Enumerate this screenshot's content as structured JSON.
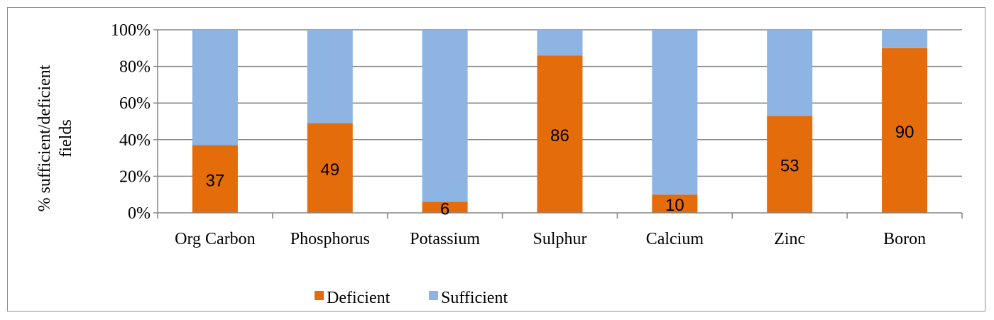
{
  "chart_data": {
    "type": "bar",
    "stacked": true,
    "percent_stacked": true,
    "categories": [
      "Org Carbon",
      "Phosphorus",
      "Potassium",
      "Sulphur",
      "Calcium",
      "Zinc",
      "Boron"
    ],
    "series": [
      {
        "name": "Deficient",
        "values": [
          37,
          49,
          6,
          86,
          10,
          53,
          90
        ],
        "color": "#e46c0a"
      },
      {
        "name": "Sufficient",
        "values": [
          63,
          51,
          94,
          14,
          90,
          47,
          10
        ],
        "color": "#8eb4e3"
      }
    ],
    "data_labels": [
      "37",
      "49",
      "6",
      "86",
      "10",
      "53",
      "90"
    ],
    "ylabel_line1": "% sufficient/deficient",
    "ylabel_line2": "fields",
    "yticks": [
      "0%",
      "20%",
      "40%",
      "60%",
      "80%",
      "100%"
    ],
    "ylim": [
      0,
      100
    ],
    "grid": true,
    "legend_position": "bottom"
  }
}
